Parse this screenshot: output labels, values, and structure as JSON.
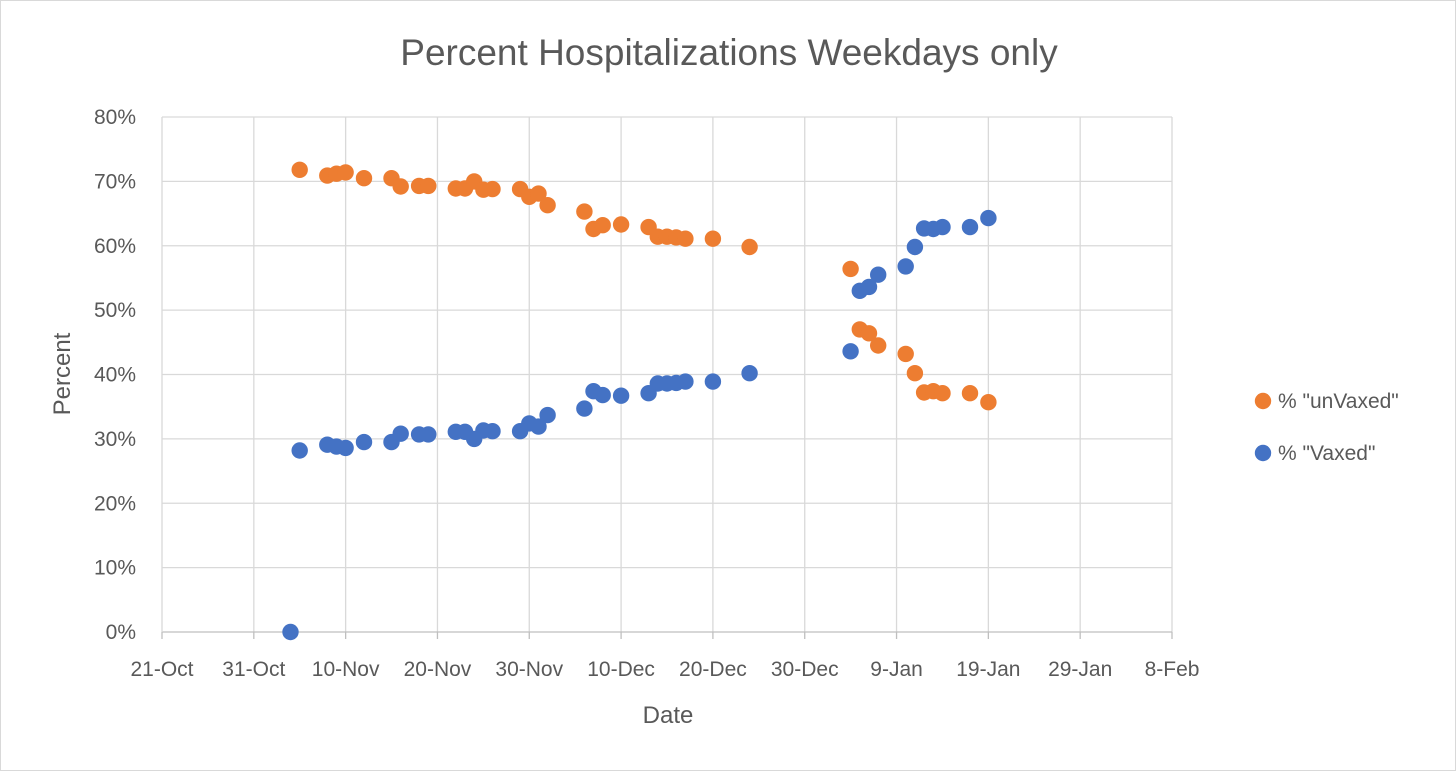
{
  "chart_data": {
    "type": "scatter",
    "title": "Percent Hospitalizations Weekdays only",
    "xlabel": "Date",
    "ylabel": "Percent",
    "x_axis": {
      "type": "date",
      "start": "2021-10-21",
      "end": "2022-02-08",
      "tick_labels": [
        "21-Oct",
        "31-Oct",
        "10-Nov",
        "20-Nov",
        "30-Nov",
        "10-Dec",
        "20-Dec",
        "30-Dec",
        "9-Jan",
        "19-Jan",
        "29-Jan",
        "8-Feb"
      ]
    },
    "y_axis": {
      "min": 0,
      "max": 0.8,
      "step": 0.1,
      "tick_labels": [
        "0%",
        "10%",
        "20%",
        "30%",
        "40%",
        "50%",
        "60%",
        "70%",
        "80%"
      ]
    },
    "grid": true,
    "legend_position": "right",
    "series": [
      {
        "name": "% \"unVaxed\"",
        "color": "#ED7D31",
        "points": [
          [
            "2021-11-05",
            0.718
          ],
          [
            "2021-11-08",
            0.709
          ],
          [
            "2021-11-09",
            0.712
          ],
          [
            "2021-11-10",
            0.714
          ],
          [
            "2021-11-12",
            0.705
          ],
          [
            "2021-11-15",
            0.705
          ],
          [
            "2021-11-16",
            0.692
          ],
          [
            "2021-11-18",
            0.693
          ],
          [
            "2021-11-19",
            0.693
          ],
          [
            "2021-11-22",
            0.689
          ],
          [
            "2021-11-23",
            0.689
          ],
          [
            "2021-11-24",
            0.7
          ],
          [
            "2021-11-25",
            0.687
          ],
          [
            "2021-11-26",
            0.688
          ],
          [
            "2021-11-29",
            0.688
          ],
          [
            "2021-11-30",
            0.676
          ],
          [
            "2021-12-01",
            0.681
          ],
          [
            "2021-12-02",
            0.663
          ],
          [
            "2021-12-06",
            0.653
          ],
          [
            "2021-12-07",
            0.626
          ],
          [
            "2021-12-08",
            0.632
          ],
          [
            "2021-12-10",
            0.633
          ],
          [
            "2021-12-13",
            0.629
          ],
          [
            "2021-12-14",
            0.614
          ],
          [
            "2021-12-15",
            0.614
          ],
          [
            "2021-12-16",
            0.613
          ],
          [
            "2021-12-17",
            0.611
          ],
          [
            "2021-12-20",
            0.611
          ],
          [
            "2021-12-24",
            0.598
          ],
          [
            "2022-01-04",
            0.564
          ],
          [
            "2022-01-05",
            0.47
          ],
          [
            "2022-01-06",
            0.464
          ],
          [
            "2022-01-07",
            0.445
          ],
          [
            "2022-01-10",
            0.432
          ],
          [
            "2022-01-11",
            0.402
          ],
          [
            "2022-01-12",
            0.372
          ],
          [
            "2022-01-13",
            0.374
          ],
          [
            "2022-01-14",
            0.371
          ],
          [
            "2022-01-17",
            0.371
          ],
          [
            "2022-01-19",
            0.357
          ]
        ]
      },
      {
        "name": "% \"Vaxed\"",
        "color": "#4472C4",
        "points": [
          [
            "2021-11-04",
            0.0
          ],
          [
            "2021-11-05",
            0.282
          ],
          [
            "2021-11-08",
            0.291
          ],
          [
            "2021-11-09",
            0.288
          ],
          [
            "2021-11-10",
            0.286
          ],
          [
            "2021-11-12",
            0.295
          ],
          [
            "2021-11-15",
            0.295
          ],
          [
            "2021-11-16",
            0.308
          ],
          [
            "2021-11-18",
            0.307
          ],
          [
            "2021-11-19",
            0.307
          ],
          [
            "2021-11-22",
            0.311
          ],
          [
            "2021-11-23",
            0.311
          ],
          [
            "2021-11-24",
            0.3
          ],
          [
            "2021-11-25",
            0.313
          ],
          [
            "2021-11-26",
            0.312
          ],
          [
            "2021-11-29",
            0.312
          ],
          [
            "2021-11-30",
            0.324
          ],
          [
            "2021-12-01",
            0.319
          ],
          [
            "2021-12-02",
            0.337
          ],
          [
            "2021-12-06",
            0.347
          ],
          [
            "2021-12-07",
            0.374
          ],
          [
            "2021-12-08",
            0.368
          ],
          [
            "2021-12-10",
            0.367
          ],
          [
            "2021-12-13",
            0.371
          ],
          [
            "2021-12-14",
            0.386
          ],
          [
            "2021-12-15",
            0.386
          ],
          [
            "2021-12-16",
            0.387
          ],
          [
            "2021-12-17",
            0.389
          ],
          [
            "2021-12-20",
            0.389
          ],
          [
            "2021-12-24",
            0.402
          ],
          [
            "2022-01-04",
            0.436
          ],
          [
            "2022-01-05",
            0.53
          ],
          [
            "2022-01-06",
            0.536
          ],
          [
            "2022-01-07",
            0.555
          ],
          [
            "2022-01-10",
            0.568
          ],
          [
            "2022-01-11",
            0.598
          ],
          [
            "2022-01-12",
            0.627
          ],
          [
            "2022-01-13",
            0.626
          ],
          [
            "2022-01-14",
            0.629
          ],
          [
            "2022-01-17",
            0.629
          ],
          [
            "2022-01-19",
            0.643
          ]
        ]
      }
    ]
  }
}
